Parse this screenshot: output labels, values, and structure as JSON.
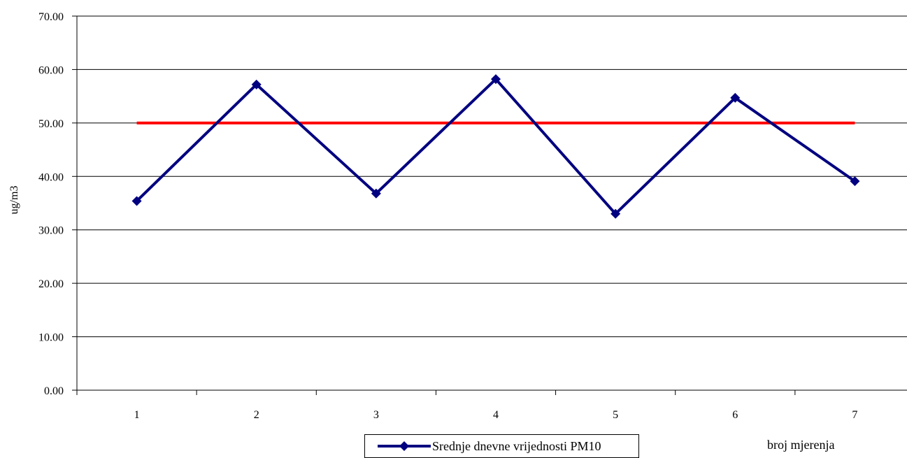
{
  "chart_data": {
    "type": "line",
    "title": "",
    "xlabel": "broj mjerenja",
    "ylabel": "ug/m3",
    "categories": [
      "1",
      "2",
      "3",
      "4",
      "5",
      "6",
      "7"
    ],
    "ylim": [
      0,
      70
    ],
    "yticks": [
      "0.00",
      "10.00",
      "20.00",
      "30.00",
      "40.00",
      "50.00",
      "60.00",
      "70.00"
    ],
    "grid": true,
    "legend_position": "bottom",
    "series": [
      {
        "name": "Srednje dnevne vrijednosti PM10",
        "values": [
          35.4,
          57.2,
          36.8,
          58.2,
          33.0,
          54.7,
          39.1
        ],
        "color": "#000080",
        "marker": "diamond"
      },
      {
        "values": [
          50,
          50,
          50,
          50,
          50,
          50,
          50
        ],
        "color": "#ff0000",
        "marker": "none"
      }
    ]
  }
}
